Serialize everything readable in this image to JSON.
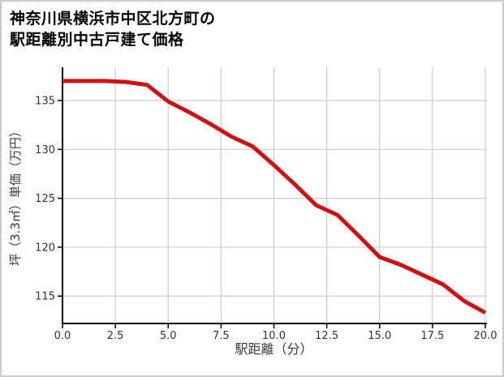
{
  "card": {
    "title_line1": "神奈川県横浜市中区北方町の",
    "title_line2": "駅距離別中古戸建て価格"
  },
  "chart_data": {
    "type": "line",
    "title": "神奈川県横浜市中区北方町の駅距離別中古戸建て価格",
    "xlabel": "駅距離（分）",
    "ylabel": "坪（3.3㎡）単価（万円）",
    "x": [
      0,
      1,
      2,
      3,
      4,
      5,
      6,
      7,
      8,
      9,
      10,
      11,
      12,
      13,
      14,
      15,
      16,
      17,
      18,
      19,
      20
    ],
    "values": [
      137.0,
      137.0,
      137.0,
      136.9,
      136.6,
      134.9,
      133.8,
      132.6,
      131.3,
      130.3,
      128.4,
      126.4,
      124.3,
      123.3,
      121.2,
      119.0,
      118.2,
      117.2,
      116.2,
      114.5,
      113.3
    ],
    "xlim": [
      0,
      20
    ],
    "ylim": [
      112.2,
      138.4
    ],
    "x_ticks": [
      0,
      2.5,
      5,
      7.5,
      10,
      12.5,
      15,
      17.5,
      20
    ],
    "x_tick_labels": [
      "0.0",
      "2.5",
      "5.0",
      "7.5",
      "10.0",
      "12.5",
      "15.0",
      "17.5",
      "20.0"
    ],
    "y_ticks": [
      115,
      120,
      125,
      130,
      135
    ],
    "y_tick_labels": [
      "115",
      "120",
      "125",
      "130",
      "135"
    ],
    "grid": true,
    "legend": false,
    "line_color": "#ce1212",
    "line_width": 5,
    "grid_color": "#cccccc",
    "axis_color": "#000000",
    "tick_label_color": "#333333",
    "axis_label_color": "#3a3a3a"
  }
}
